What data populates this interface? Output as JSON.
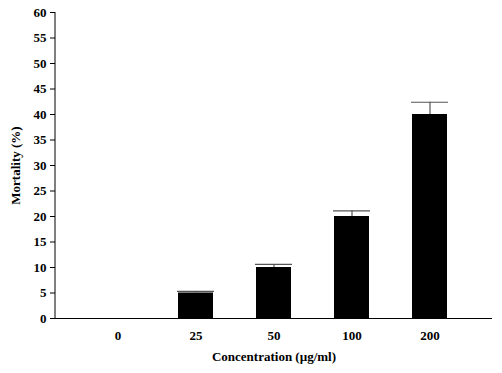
{
  "chart_data": {
    "type": "bar",
    "x_label": "Concentration (µg/ml)",
    "y_label": "Mortality (%)",
    "categories": [
      "0",
      "25",
      "50",
      "100",
      "200"
    ],
    "values": [
      0,
      5,
      10,
      20,
      40
    ],
    "errors": [
      0,
      0.3,
      0.6,
      1.1,
      2.4
    ],
    "color": "#000000",
    "ylim": [
      0,
      60
    ],
    "yticks": [
      0,
      5,
      10,
      15,
      20,
      25,
      30,
      35,
      40,
      45,
      50,
      55,
      60
    ],
    "grid": false
  }
}
